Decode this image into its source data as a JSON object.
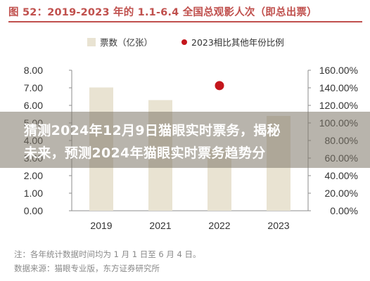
{
  "figure": {
    "title": "图 52：2019-2023 年的 1.1-6.4 全国总观影人次（即总出票）"
  },
  "chart_data": {
    "type": "bar",
    "categories": [
      "2019",
      "2021",
      "2022",
      "2023"
    ],
    "series": [
      {
        "name": "票数（亿张）",
        "kind": "bar",
        "axis": "left",
        "color": "#e9e3d2",
        "values": [
          7.02,
          6.3,
          3.5,
          5.4
        ]
      },
      {
        "name": "2023相比其他年份比例",
        "kind": "scatter",
        "axis": "right",
        "color": "#c4161c",
        "values": [
          null,
          null,
          142.5,
          null
        ]
      }
    ],
    "y_left": {
      "ylim": [
        0,
        8
      ],
      "ticks": [
        "0.00",
        "1.00",
        "2.00",
        "3.00",
        "4.00",
        "5.00",
        "6.00",
        "7.00",
        "8.00"
      ]
    },
    "y_right": {
      "ylim": [
        0,
        160
      ],
      "ticks": [
        "0.00%",
        "20.00%",
        "40.00%",
        "60.00%",
        "80.00%",
        "100.00%",
        "120.00%",
        "140.00%",
        "160.00%"
      ]
    },
    "grid": false,
    "legend_position": "top"
  },
  "overlay": {
    "line1": "猜测2024年12月9日猫眼实时票务，揭秘",
    "line2": "未来，预测2024年猫眼实时票务趋势分"
  },
  "notes": {
    "note": "注：各年统计数据时间均为 1 月 1 日至 6 月 4 日。",
    "source": "数据来源：猫眼专业版，东方证券研究所"
  }
}
